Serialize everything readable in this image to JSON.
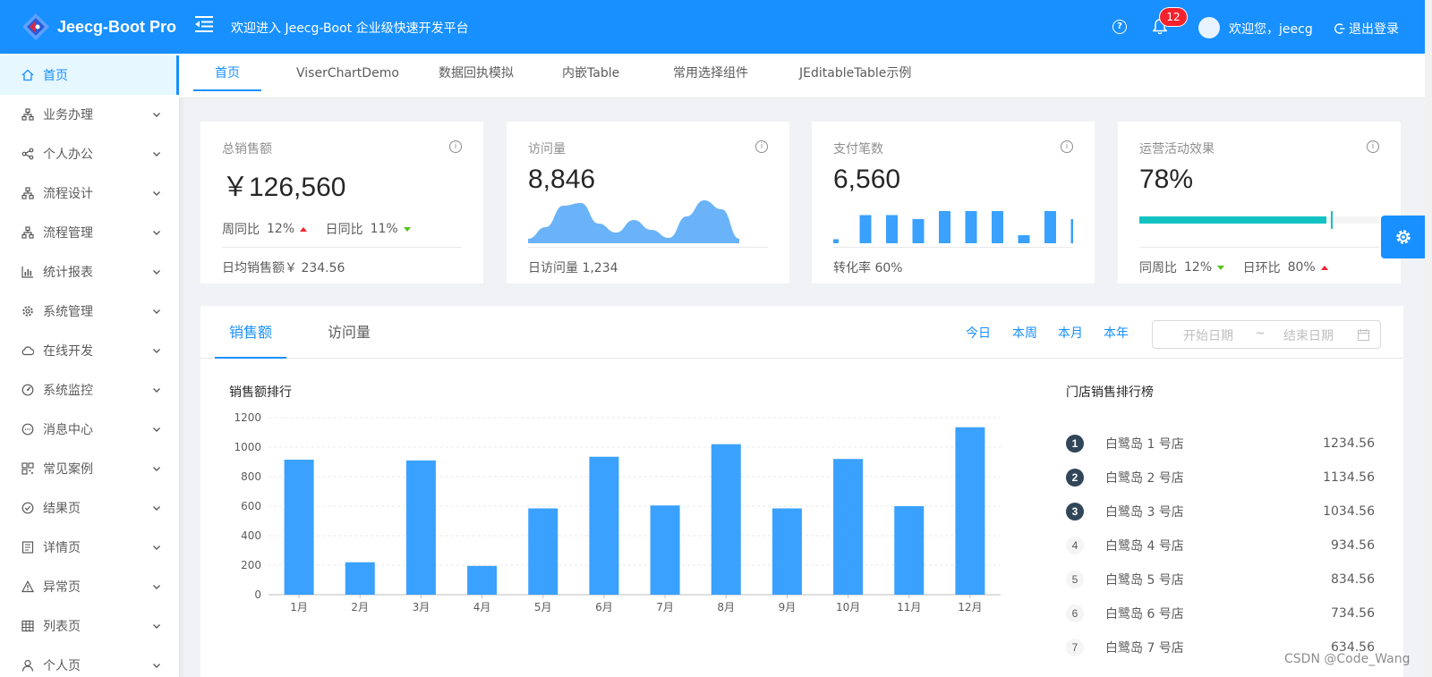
{
  "header": {
    "logo_text": "Jeecg-Boot Pro",
    "title": "欢迎进入 Jeecg-Boot 企业级快速开发平台",
    "notification_count": "12",
    "welcome": "欢迎您，jeecg",
    "logout": "退出登录",
    "accent_color": "#1890ff"
  },
  "sidebar": {
    "items": [
      {
        "label": "首页",
        "icon": "home-icon"
      },
      {
        "label": "业务办理",
        "icon": "org-icon"
      },
      {
        "label": "个人办公",
        "icon": "share-icon"
      },
      {
        "label": "流程设计",
        "icon": "org-icon"
      },
      {
        "label": "流程管理",
        "icon": "org-icon"
      },
      {
        "label": "统计报表",
        "icon": "bar-chart-icon"
      },
      {
        "label": "系统管理",
        "icon": "gear-icon"
      },
      {
        "label": "在线开发",
        "icon": "cloud-icon"
      },
      {
        "label": "系统监控",
        "icon": "dashboard-icon"
      },
      {
        "label": "消息中心",
        "icon": "message-icon"
      },
      {
        "label": "常见案例",
        "icon": "qrcode-icon"
      },
      {
        "label": "结果页",
        "icon": "check-circle-icon"
      },
      {
        "label": "详情页",
        "icon": "profile-icon"
      },
      {
        "label": "异常页",
        "icon": "warning-icon"
      },
      {
        "label": "列表页",
        "icon": "table-icon"
      },
      {
        "label": "个人页",
        "icon": "user-icon"
      }
    ]
  },
  "tabs": [
    "首页",
    "ViserChartDemo",
    "数据回执模拟",
    "内嵌Table",
    "常用选择组件",
    "JEditableTable示例"
  ],
  "cards": {
    "sales": {
      "title": "总销售额",
      "value": "￥126,560",
      "week_label": "周同比",
      "week_value": "12%",
      "day_label": "日同比",
      "day_value": "11%",
      "footer": "日均销售额￥ 234.56"
    },
    "visits": {
      "title": "访问量",
      "value": "8,846",
      "footer": "日访问量 1,234"
    },
    "payments": {
      "title": "支付笔数",
      "value": "6,560",
      "footer": "转化率 60%"
    },
    "campaign": {
      "title": "运营活动效果",
      "value": "78%",
      "progress": 0.78,
      "target": 0.8,
      "week_label": "同周比",
      "week_value": "12%",
      "day_label": "日环比",
      "day_value": "80%"
    }
  },
  "panel": {
    "tabs": [
      "销售额",
      "访问量"
    ],
    "ranges": [
      "今日",
      "本周",
      "本月",
      "本年"
    ],
    "date_start_placeholder": "开始日期",
    "date_sep": "~",
    "date_end_placeholder": "结束日期",
    "chart_title": "销售额排行",
    "rank_title": "门店销售排行榜",
    "rank_items": [
      {
        "rank": "1",
        "name": "白鹭岛 1 号店",
        "value": "1234.56"
      },
      {
        "rank": "2",
        "name": "白鹭岛 2 号店",
        "value": "1134.56"
      },
      {
        "rank": "3",
        "name": "白鹭岛 3 号店",
        "value": "1034.56"
      },
      {
        "rank": "4",
        "name": "白鹭岛 4 号店",
        "value": "934.56"
      },
      {
        "rank": "5",
        "name": "白鹭岛 5 号店",
        "value": "834.56"
      },
      {
        "rank": "6",
        "name": "白鹭岛 6 号店",
        "value": "734.56"
      },
      {
        "rank": "7",
        "name": "白鹭岛 7 号店",
        "value": "634.56"
      }
    ]
  },
  "watermark": "CSDN @Code_Wang",
  "chart_data": [
    {
      "type": "bar",
      "title": "销售额排行",
      "categories": [
        "1月",
        "2月",
        "3月",
        "4月",
        "5月",
        "6月",
        "7月",
        "8月",
        "9月",
        "10月",
        "11月",
        "12月"
      ],
      "values": [
        915,
        220,
        910,
        195,
        585,
        935,
        605,
        1020,
        585,
        920,
        600,
        1135
      ],
      "ylim": [
        0,
        1200
      ],
      "yticks": [
        "0",
        "200",
        "400",
        "600",
        "800",
        "1000",
        "1200"
      ],
      "color": "#3aa1ff",
      "grid": true
    },
    {
      "type": "area",
      "values": [
        5,
        18,
        42,
        45,
        22,
        12,
        26,
        15,
        6,
        30,
        48,
        38,
        5
      ],
      "color": "#6ab3f9"
    },
    {
      "type": "bar",
      "values": [
        1,
        7,
        7,
        6,
        8,
        8,
        8,
        2,
        8,
        6
      ],
      "color": "#3aa1ff"
    }
  ]
}
